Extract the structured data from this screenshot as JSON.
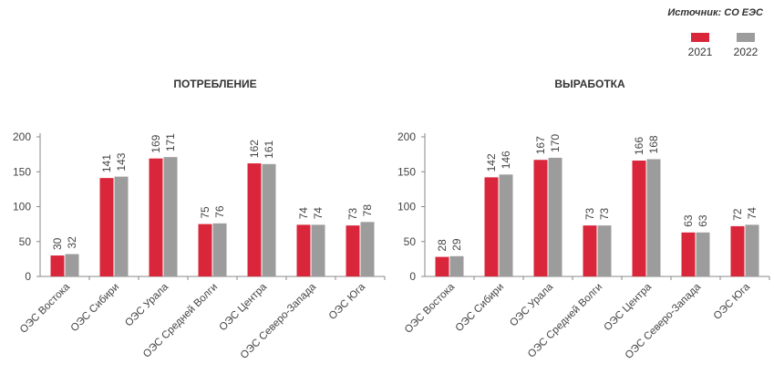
{
  "source": "Источник: СО ЕЭС",
  "colors": {
    "y2021": "#d9263a",
    "y2022": "#9c9c9c",
    "axis": "#888888",
    "text": "#444444"
  },
  "legend": [
    {
      "label": "2021",
      "color": "#d9263a"
    },
    {
      "label": "2022",
      "color": "#9c9c9c"
    }
  ],
  "chart_data": [
    {
      "type": "bar",
      "title": "ПОТРЕБЛЕНИЕ",
      "categories": [
        "ОЭС Востока",
        "ОЭС Сибири",
        "ОЭС Урала",
        "ОЭС Средней Волги",
        "ОЭС Центра",
        "ОЭС Северо-Запада",
        "ОЭС Юга"
      ],
      "series": [
        {
          "name": "2021",
          "values": [
            30,
            141,
            169,
            75,
            162,
            74,
            73
          ]
        },
        {
          "name": "2022",
          "values": [
            32,
            143,
            171,
            76,
            161,
            74,
            78
          ]
        }
      ],
      "yticks": [
        0,
        50,
        100,
        150,
        200
      ],
      "ylim": [
        0,
        200
      ],
      "grid": false
    },
    {
      "type": "bar",
      "title": "ВЫРАБОТКА",
      "categories": [
        "ОЭС Востока",
        "ОЭС Сибири",
        "ОЭС Урала",
        "ОЭС Средней Волги",
        "ОЭС Центра",
        "ОЭС Северо-Запада",
        "ОЭС Юга"
      ],
      "series": [
        {
          "name": "2021",
          "values": [
            28,
            142,
            167,
            73,
            166,
            63,
            72
          ]
        },
        {
          "name": "2022",
          "values": [
            29,
            146,
            170,
            73,
            168,
            63,
            74
          ]
        }
      ],
      "yticks": [
        0,
        50,
        100,
        150,
        200
      ],
      "ylim": [
        0,
        200
      ],
      "grid": false
    }
  ]
}
